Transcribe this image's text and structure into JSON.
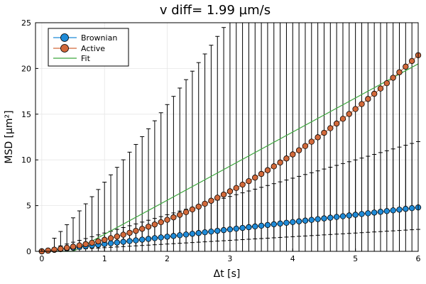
{
  "chart_data": {
    "type": "scatter",
    "title": "v diff= 1.99 µm/s",
    "xlabel": "Δt [s]",
    "ylabel": "MSD [µm²]",
    "xlim": [
      -0.1,
      6.0
    ],
    "ylim": [
      0,
      25
    ],
    "xticks": [
      0,
      1,
      2,
      3,
      4,
      5,
      6
    ],
    "yticks": [
      0,
      5,
      10,
      15,
      20,
      25
    ],
    "xtick_labels": [
      "0",
      "1",
      "2",
      "3",
      "4",
      "5",
      "6"
    ],
    "ytick_labels": [
      "0",
      "5",
      "10",
      "15",
      "20",
      "25"
    ],
    "grid": true,
    "legend_position": "top-left",
    "x": {
      "start": 0.0,
      "step": 0.1,
      "count": 61
    },
    "series": [
      {
        "name": "Brownian",
        "type": "scatter+line",
        "color": "#1f8bd8",
        "slope": 0.8,
        "power": 1,
        "error_upper_slope": 1.2,
        "error_lower_slope": 0.4,
        "error_start_index": 2
      },
      {
        "name": "Active",
        "type": "scatter+line",
        "color": "#d2693a",
        "model": "4*D*t + v^2*t^2",
        "D": 0.2,
        "v": 0.68,
        "error_upper_slope": 6.3,
        "error_start_index": 2
      },
      {
        "name": "Fit",
        "type": "line",
        "color": "#3ea63e",
        "points": [
          [
            0,
            0
          ],
          [
            0.5,
            0
          ],
          [
            6,
            20.5
          ]
        ]
      }
    ]
  }
}
